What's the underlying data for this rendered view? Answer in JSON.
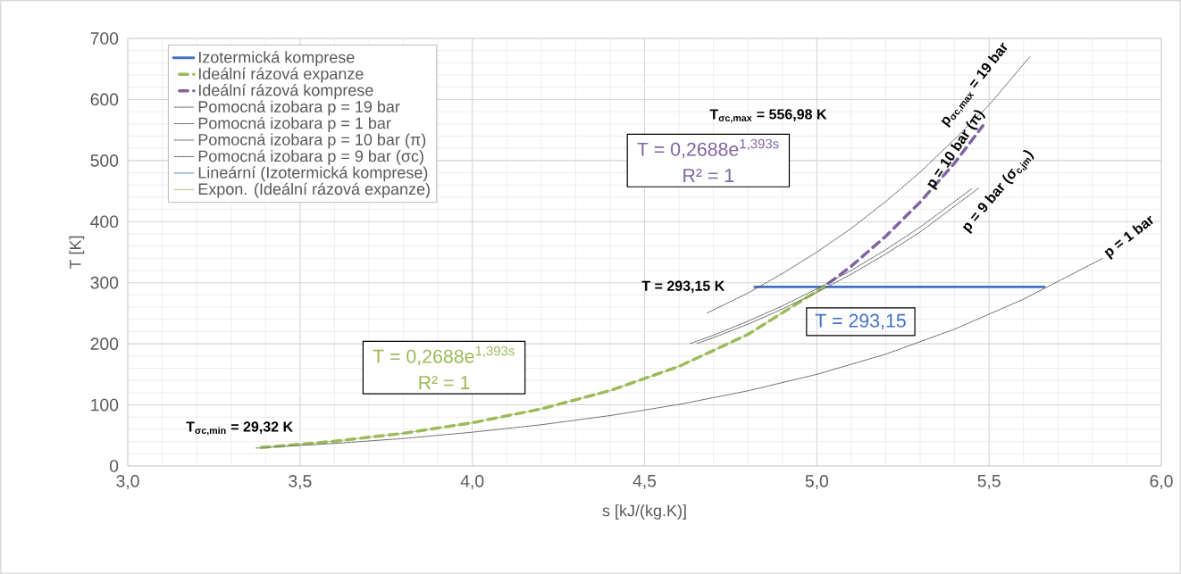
{
  "chart_data": {
    "type": "line",
    "xlabel": "s [kJ/(kg.K)]",
    "ylabel": "T [K]",
    "xlim": [
      3.0,
      6.0
    ],
    "ylim": [
      0,
      700
    ],
    "xticks": [
      {
        "value": 3.0,
        "label": "3,0"
      },
      {
        "value": 3.5,
        "label": "3,5"
      },
      {
        "value": 4.0,
        "label": "4,0"
      },
      {
        "value": 4.5,
        "label": "4,5"
      },
      {
        "value": 5.0,
        "label": "5,0"
      },
      {
        "value": 5.5,
        "label": "5,5"
      },
      {
        "value": 6.0,
        "label": "6,0"
      }
    ],
    "yticks": [
      0,
      100,
      200,
      300,
      400,
      500,
      600,
      700
    ],
    "grid": true,
    "legend": "top left",
    "marker": "none",
    "series": [
      {
        "name": "Izotermická komprese",
        "color": "#4472c4",
        "line_style": "solid",
        "x": [
          4.82,
          5.66
        ],
        "values": [
          293.15,
          293.15
        ]
      },
      {
        "name": "Ideální rázová expanze",
        "color": "#9bbb59",
        "line_style": "dashed",
        "x": [
          3.37,
          3.6,
          3.8,
          4.0,
          4.2,
          4.4,
          4.6,
          4.8,
          5.02
        ],
        "values": [
          29.32,
          40.5,
          53.5,
          70.7,
          93.4,
          123.4,
          163,
          215.4,
          293.15
        ]
      },
      {
        "name": "Ideální rázová komprese",
        "color": "#8064a2",
        "line_style": "dashed",
        "x": [
          5.02,
          5.1,
          5.2,
          5.3,
          5.4,
          5.482
        ],
        "values": [
          293.15,
          327,
          376,
          432,
          496,
          556.98
        ]
      },
      {
        "name": "Pomocná izobara p = 19 bar",
        "color": "#595959",
        "line_style": "dotted",
        "x": [
          4.68,
          4.8,
          4.9,
          5.0,
          5.1,
          5.2,
          5.3,
          5.4,
          5.5,
          5.62
        ],
        "values": [
          250,
          283,
          315,
          350,
          389,
          433,
          481,
          535,
          591,
          671
        ]
      },
      {
        "name": "Pomocná izobara p = 1 bar",
        "color": "#595959",
        "line_style": "dotted",
        "x": [
          3.37,
          3.6,
          3.8,
          4.0,
          4.2,
          4.4,
          4.6,
          4.8,
          5.0,
          5.2,
          5.4,
          5.6,
          5.83
        ],
        "values": [
          29.32,
          36.9,
          45,
          55.3,
          67.5,
          82.5,
          100.7,
          123,
          150,
          183,
          224,
          273,
          340
        ]
      },
      {
        "name": "Pomocná izobara p = 10 bar (π)",
        "color": "#595959",
        "line_style": "dotted",
        "x": [
          4.63,
          4.7,
          4.8,
          4.9,
          5.0,
          5.1,
          5.2,
          5.3,
          5.45
        ],
        "values": [
          200,
          214,
          237,
          262,
          290,
          320,
          354,
          391,
          454
        ]
      },
      {
        "name": "Pomocná izobara p = 9 bar (σc)",
        "color": "#595959",
        "line_style": "dotted",
        "x": [
          4.65,
          4.7,
          4.8,
          4.9,
          5.0,
          5.1,
          5.2,
          5.3,
          5.47
        ],
        "values": [
          200,
          210,
          232,
          257,
          284,
          314,
          347,
          383,
          455
        ]
      },
      {
        "name": "Lineární (Izotermická komprese)",
        "color": "#4472c4",
        "line_style": "dotted"
      },
      {
        "name": "Expon. (Ideální rázová expanze)",
        "color": "#9bbb59",
        "line_style": "dotted",
        "x": [
          3.37,
          3.6,
          3.8,
          4.0,
          4.2,
          4.4,
          4.6,
          4.8,
          5.02
        ],
        "values": [
          29.32,
          40.5,
          53.5,
          70.7,
          93.4,
          123.4,
          163,
          215.4,
          293.15
        ]
      }
    ],
    "annotations": [
      {
        "text": "T$_{σc,min}$ = 29,32 K",
        "x": 3.37,
        "y": 29.32
      },
      "T$_{σc,max}$ = 556,98 K",
      {
        "text": "T = 293,15  K",
        "x": 4.82,
        "y": 293.15
      },
      {
        "text": "p$_{σc,max}$ = 19 bar",
        "x": 5.62,
        "y": 671
      },
      {
        "text": "p = 10 bar (π)",
        "x": 5.45,
        "y": 454
      },
      {
        "text": "p = 9 bar (σ$_{c,jm}$)",
        "x": 5.47,
        "y": 455
      },
      {
        "text": "p = 1 bar",
        "x": 5.83,
        "y": 340
      },
      {
        "text": "T = 293,15",
        "x": 5.2,
        "y": 293.15
      },
      "T = 0,2688e$^{1,393s}$",
      "R² = 1",
      "T = 0,2688e$^{1,393s}$",
      "R² = 1"
    ]
  }
}
